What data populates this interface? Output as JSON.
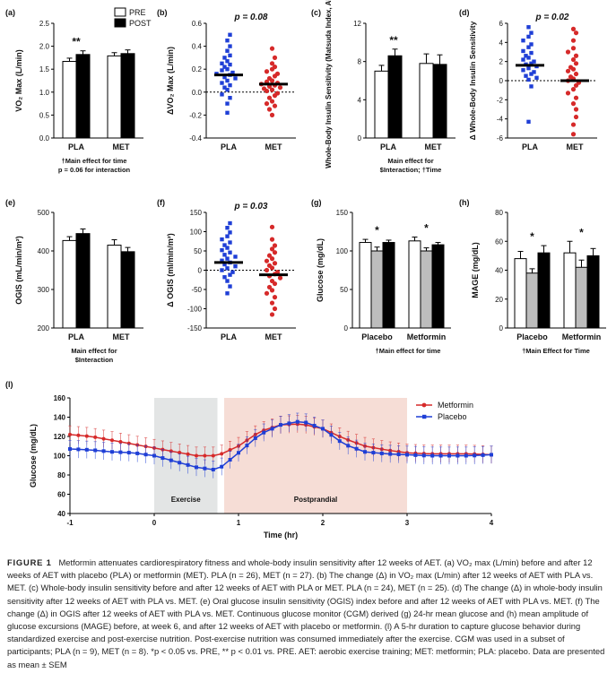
{
  "chart_data": [
    {
      "panel": "(a)",
      "type": "bar",
      "ylabel": "VO2 Max (L/min)",
      "ylim": [
        0,
        2.5
      ],
      "yticks": [
        0,
        0.5,
        1.0,
        1.5,
        2.0,
        2.5
      ],
      "categories": [
        "PLA",
        "MET"
      ],
      "legend": [
        "PRE",
        "POST"
      ],
      "series": [
        {
          "name": "PRE",
          "values": [
            1.67,
            1.79
          ],
          "err": [
            0.07,
            0.07
          ],
          "color": "#ffffff"
        },
        {
          "name": "POST",
          "values": [
            1.82,
            1.84
          ],
          "err": [
            0.08,
            0.08
          ],
          "color": "#000000"
        }
      ],
      "sig": [
        {
          "category": "PLA",
          "label": "**"
        }
      ],
      "note1": "†Main effect for time",
      "note2": "p = 0.06 for interaction"
    },
    {
      "panel": "(b)",
      "type": "scatter",
      "title": "p = 0.08",
      "ylabel": "ΔVO2 Max (L/min)",
      "ylim": [
        -0.4,
        0.6
      ],
      "yticks": [
        -0.4,
        -0.2,
        0.0,
        0.2,
        0.4,
        0.6
      ],
      "categories": [
        "PLA",
        "MET"
      ],
      "groups": [
        {
          "name": "PLA",
          "color": "#1f3fd6",
          "mean": 0.15,
          "values": [
            0.5,
            0.45,
            0.4,
            0.36,
            0.32,
            0.3,
            0.27,
            0.25,
            0.24,
            0.22,
            0.2,
            0.19,
            0.17,
            0.16,
            0.15,
            0.13,
            0.12,
            0.1,
            0.08,
            0.06,
            0.04,
            0.02,
            -0.02,
            -0.05,
            -0.1,
            -0.18
          ]
        },
        {
          "name": "MET",
          "color": "#d62a2a",
          "mean": 0.07,
          "values": [
            0.38,
            0.3,
            0.25,
            0.22,
            0.2,
            0.18,
            0.16,
            0.14,
            0.12,
            0.1,
            0.09,
            0.08,
            0.07,
            0.06,
            0.05,
            0.04,
            0.03,
            0.02,
            0.01,
            -0.01,
            -0.03,
            -0.05,
            -0.08,
            -0.1,
            -0.12,
            -0.15,
            -0.2
          ]
        }
      ]
    },
    {
      "panel": "(c)",
      "type": "bar",
      "ylabel": "Whole-Body Insulin Sensitivity (Matsuda Index, AU)",
      "ylim": [
        0,
        12
      ],
      "yticks": [
        0,
        4,
        8,
        12
      ],
      "categories": [
        "PLA",
        "MET"
      ],
      "series": [
        {
          "name": "PRE",
          "values": [
            7.0,
            7.8
          ],
          "err": [
            0.6,
            1.0
          ],
          "color": "#ffffff"
        },
        {
          "name": "POST",
          "values": [
            8.6,
            7.7
          ],
          "err": [
            0.7,
            1.0
          ],
          "color": "#000000"
        }
      ],
      "sig": [
        {
          "category": "PLA",
          "label": "**"
        }
      ],
      "note1": "Main effect for",
      "note2": "$Interaction; †Time"
    },
    {
      "panel": "(d)",
      "type": "scatter",
      "title": "p = 0.02",
      "ylabel": "Δ Whole-Body Insulin Sensitivity",
      "ylim": [
        -6,
        6
      ],
      "yticks": [
        -6,
        -4,
        -2,
        0,
        2,
        4,
        6
      ],
      "categories": [
        "PLA",
        "MET"
      ],
      "groups": [
        {
          "name": "PLA",
          "color": "#1f3fd6",
          "mean": 1.6,
          "values": [
            5.6,
            5.0,
            4.6,
            4.2,
            3.8,
            3.5,
            3.1,
            2.9,
            2.6,
            2.4,
            2.2,
            2.0,
            1.8,
            1.7,
            1.5,
            1.3,
            1.1,
            0.9,
            0.7,
            0.5,
            0.3,
            0.1,
            -0.6,
            -4.3
          ]
        },
        {
          "name": "MET",
          "color": "#d62a2a",
          "mean": 0.0,
          "values": [
            5.4,
            5.0,
            4.2,
            3.4,
            3.0,
            2.6,
            2.2,
            1.8,
            1.4,
            1.2,
            1.0,
            0.7,
            0.4,
            0.2,
            0.0,
            -0.2,
            -0.5,
            -0.9,
            -1.3,
            -1.8,
            -2.4,
            -3.0,
            -3.8,
            -4.6,
            -5.6
          ]
        }
      ]
    },
    {
      "panel": "(e)",
      "type": "bar",
      "ylabel": "OGIS (mL/min/m2)",
      "ylim": [
        200,
        500
      ],
      "yticks": [
        200,
        300,
        400,
        500
      ],
      "categories": [
        "PLA",
        "MET"
      ],
      "series": [
        {
          "name": "PRE",
          "values": [
            427,
            415
          ],
          "err": [
            10,
            14
          ],
          "color": "#ffffff"
        },
        {
          "name": "POST",
          "values": [
            445,
            398
          ],
          "err": [
            12,
            11
          ],
          "color": "#000000"
        }
      ],
      "note1": "Main effect for",
      "note2": "$Interaction"
    },
    {
      "panel": "(f)",
      "type": "scatter",
      "title": "p = 0.03",
      "ylabel": "Δ OGIS (ml/min/m2)",
      "ylim": [
        -150,
        150
      ],
      "yticks": [
        -150,
        -100,
        -50,
        0,
        50,
        100,
        150
      ],
      "categories": [
        "PLA",
        "MET"
      ],
      "groups": [
        {
          "name": "PLA",
          "color": "#1f3fd6",
          "mean": 20,
          "values": [
            122,
            110,
            98,
            88,
            80,
            72,
            65,
            58,
            52,
            46,
            40,
            35,
            30,
            25,
            20,
            15,
            10,
            5,
            0,
            -5,
            -12,
            -18,
            -28,
            -42,
            -60
          ]
        },
        {
          "name": "MET",
          "color": "#d62a2a",
          "mean": -12,
          "values": [
            112,
            80,
            64,
            55,
            46,
            38,
            30,
            24,
            18,
            12,
            6,
            0,
            -5,
            -10,
            -15,
            -20,
            -28,
            -35,
            -44,
            -52,
            -60,
            -70,
            -85,
            -100,
            -115
          ]
        }
      ]
    },
    {
      "panel": "(g)",
      "type": "bar",
      "ylabel": "Glucose (mg/dL)",
      "ylim": [
        0,
        150
      ],
      "yticks": [
        0,
        50,
        100,
        150
      ],
      "categories": [
        "Placebo",
        "Metformin"
      ],
      "series": [
        {
          "name": "PRE",
          "values": [
            111,
            113
          ],
          "err": [
            4,
            5
          ],
          "color": "#ffffff"
        },
        {
          "name": "week 6",
          "values": [
            100,
            100
          ],
          "err": [
            5,
            4
          ],
          "color": "#bdbdbd"
        },
        {
          "name": "POST",
          "values": [
            111,
            108
          ],
          "err": [
            3,
            3
          ],
          "color": "#000000"
        }
      ],
      "sig": [
        {
          "category": "Placebo",
          "label": "*"
        },
        {
          "category": "Metformin",
          "label": "*"
        }
      ],
      "note1": "†Main effect for time"
    },
    {
      "panel": "(h)",
      "type": "bar",
      "ylabel": "MAGE (mg/dL)",
      "ylim": [
        0,
        80
      ],
      "yticks": [
        0,
        20,
        40,
        60,
        80
      ],
      "categories": [
        "Placebo",
        "Metformin"
      ],
      "series": [
        {
          "name": "PRE",
          "values": [
            48,
            52
          ],
          "err": [
            5,
            8
          ],
          "color": "#ffffff"
        },
        {
          "name": "week 6",
          "values": [
            38,
            42
          ],
          "err": [
            3,
            5
          ],
          "color": "#bdbdbd"
        },
        {
          "name": "POST",
          "values": [
            52,
            50
          ],
          "err": [
            5,
            5
          ],
          "color": "#000000"
        }
      ],
      "sig": [
        {
          "category": "Placebo",
          "label": "*"
        },
        {
          "category": "Metformin",
          "label": "*"
        }
      ],
      "note1": "†Main Effect for Time"
    },
    {
      "panel": "(l)",
      "type": "line",
      "xlabel": "Time (hr)",
      "ylabel": "Glucose (mg/dL)",
      "xlim": [
        -1,
        4
      ],
      "ylim": [
        40,
        160
      ],
      "xticks": [
        -1,
        0,
        1,
        2,
        3,
        4
      ],
      "yticks": [
        40,
        60,
        80,
        100,
        120,
        140,
        160
      ],
      "regions": [
        {
          "label": "Exercise",
          "x0": 0,
          "x1": 0.75,
          "color": "#e3e5e5"
        },
        {
          "label": "Postprandial",
          "x0": 0.83,
          "x1": 3.0,
          "color": "#f6ddd6"
        }
      ],
      "series": [
        {
          "name": "Metformin",
          "color": "#d62a2a",
          "x": [
            -1,
            -0.75,
            -0.5,
            -0.25,
            0,
            0.25,
            0.5,
            0.75,
            1.0,
            1.25,
            1.5,
            1.75,
            2.0,
            2.25,
            2.5,
            2.75,
            3.0,
            3.25,
            3.5,
            3.75,
            4.0
          ],
          "y": [
            122,
            120,
            116,
            112,
            108,
            104,
            100,
            100,
            110,
            125,
            132,
            133,
            128,
            118,
            110,
            106,
            103,
            102,
            102,
            102,
            101
          ]
        },
        {
          "name": "Placebo",
          "color": "#1f3fd6",
          "x": [
            -1,
            -0.75,
            -0.5,
            -0.25,
            0,
            0.25,
            0.5,
            0.75,
            1.0,
            1.25,
            1.5,
            1.75,
            2.0,
            2.25,
            2.5,
            2.75,
            3.0,
            3.25,
            3.5,
            3.75,
            4.0
          ],
          "y": [
            107,
            106,
            104,
            103,
            100,
            94,
            88,
            85,
            103,
            122,
            132,
            136,
            128,
            112,
            104,
            102,
            101,
            100,
            100,
            100,
            101
          ]
        }
      ],
      "err": 9
    }
  ],
  "caption": {
    "label": "FIGURE 1",
    "text": "Metformin attenuates cardiorespiratory fitness and whole-body insulin sensitivity after 12 weeks of AET. (a) VO₂ max (L/min) before and after 12 weeks of AET with placebo (PLA) or metformin (MET). PLA (n = 26), MET (n = 27). (b) The change (Δ) in VO₂ max (L/min) after 12 weeks of AET with PLA vs. MET. (c) Whole-body insulin sensitivity before and after 12 weeks of AET with PLA or MET. PLA (n = 24), MET (n = 25). (d) The change (Δ) in whole-body insulin sensitivity after 12 weeks of AET with PLA vs. MET. (e) Oral glucose insulin sensitivity (OGIS) index before and after 12 weeks of AET with PLA vs. MET. (f) The change (Δ) in OGIS after 12 weeks of AET with PLA vs. MET. Continuous glucose monitor (CGM) derived (g) 24-hr mean glucose and (h) mean amplitude of glucose excursions (MAGE) before, at week 6, and after 12 weeks of AET with placebo or metformin. (l) A 5-hr duration to capture glucose behavior during standardized exercise and post-exercise nutrition. Post-exercise nutrition was consumed immediately after the exercise. CGM was used in a subset of participants; PLA (n = 9), MET (n = 8). *p < 0.05 vs. PRE, ** p < 0.01 vs. PRE. AET: aerobic exercise training; MET: metformin; PLA: placebo. Data are presented as mean ± SEM"
  }
}
